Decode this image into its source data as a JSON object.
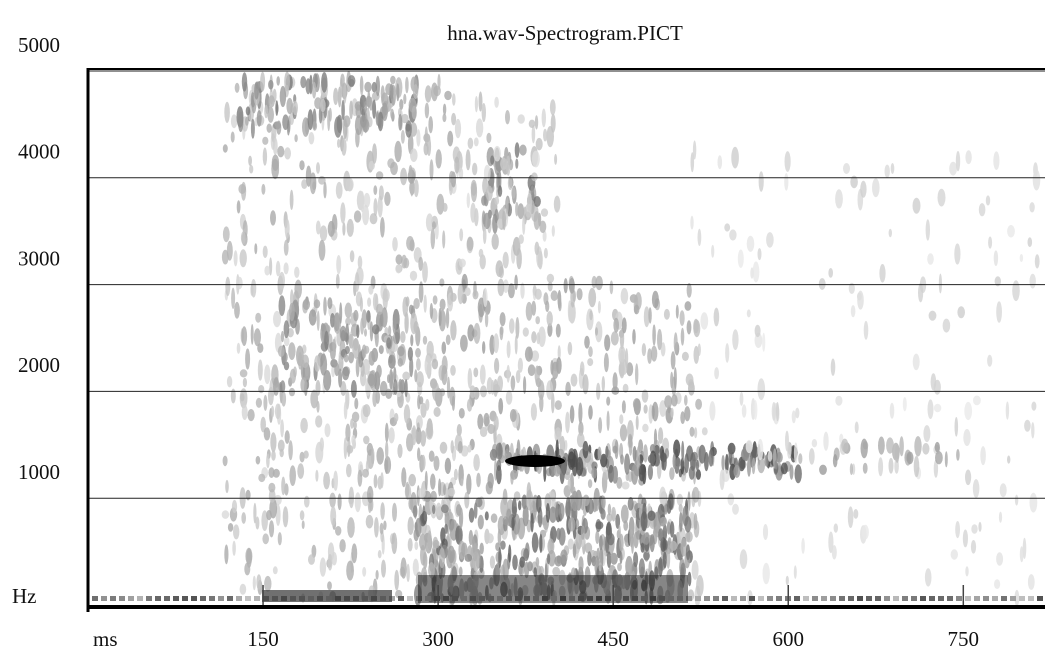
{
  "chart_data": {
    "type": "spectrogram",
    "title": "hna.wav-Spectrogram.PICT",
    "x_label": "ms",
    "y_label": "Hz",
    "xlim": [
      0,
      820
    ],
    "xticks": [
      150,
      300,
      450,
      600,
      750
    ],
    "ylim": [
      0,
      5000
    ],
    "yticks": [
      1000,
      2000,
      3000,
      4000,
      5000
    ],
    "grid": true
  }
}
